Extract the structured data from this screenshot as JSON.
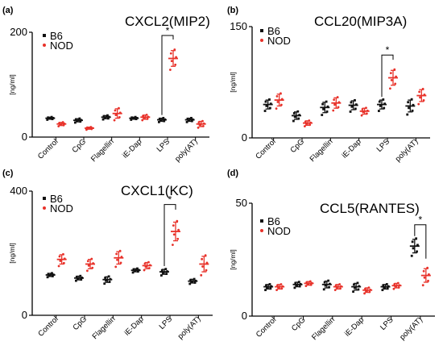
{
  "colors": {
    "b6": "#111111",
    "nod": "#e8322a"
  },
  "chart_data": [
    {
      "type": "scatter",
      "panel": "(a)",
      "title": "CXCL2(MIP2)",
      "ylabel": "[ng/ml]",
      "ylim": [
        0,
        200
      ],
      "yticks": [
        "0",
        "200"
      ],
      "categories": [
        "Control",
        "CpG",
        "Flagellin",
        "iE-Dap",
        "LPS",
        "poly(AT)"
      ],
      "series": [
        {
          "name": "B6",
          "means": [
            36,
            32,
            38,
            36,
            33,
            33
          ],
          "sems": [
            2,
            3,
            3,
            2,
            3,
            3
          ]
        },
        {
          "name": "NOD",
          "means": [
            25,
            17,
            45,
            38,
            150,
            25
          ],
          "sems": [
            3,
            2,
            9,
            4,
            15,
            5
          ]
        }
      ],
      "significance": [
        {
          "category": "LPS",
          "label": "*"
        }
      ],
      "legend": "top-left"
    },
    {
      "type": "scatter",
      "panel": "(b)",
      "title": "CCL20(MIP3A)",
      "ylabel": "[ng/ml]",
      "ylim": [
        0,
        150
      ],
      "yticks": [
        "0",
        "150"
      ],
      "categories": [
        "Control",
        "CpG",
        "Flagellin",
        "iE-Dap",
        "LPS",
        "poly(AT)"
      ],
      "series": [
        {
          "name": "B6",
          "means": [
            45,
            30,
            41,
            44,
            45,
            43
          ],
          "sems": [
            6,
            5,
            7,
            6,
            6,
            8
          ]
        },
        {
          "name": "NOD",
          "means": [
            51,
            20,
            47,
            36,
            81,
            57
          ],
          "sems": [
            8,
            3,
            7,
            4,
            10,
            8
          ]
        }
      ],
      "significance": [
        {
          "category": "LPS",
          "label": "*"
        }
      ],
      "legend": "top-left"
    },
    {
      "type": "scatter",
      "panel": "(c)",
      "title": "CXCL1(KC)",
      "ylabel": "[ng/ml]",
      "ylim": [
        0,
        400
      ],
      "yticks": [
        "0",
        "400"
      ],
      "categories": [
        "Control",
        "CpG",
        "Flagellin",
        "iE-Dap",
        "LPS",
        "poly(AT)"
      ],
      "series": [
        {
          "name": "B6",
          "means": [
            130,
            120,
            115,
            145,
            140,
            110
          ],
          "sems": [
            5,
            6,
            9,
            5,
            8,
            6
          ]
        },
        {
          "name": "NOD",
          "means": [
            180,
            165,
            185,
            160,
            270,
            165
          ],
          "sems": [
            15,
            15,
            20,
            10,
            30,
            25
          ]
        }
      ],
      "significance": [
        {
          "category": "LPS",
          "label": "*"
        }
      ],
      "legend": "top-left"
    },
    {
      "type": "scatter",
      "panel": "(d)",
      "title": "CCL5(RANTES)",
      "ylabel": "[ng/ml]",
      "ylim": [
        0,
        50
      ],
      "yticks": [
        "0",
        "50"
      ],
      "categories": [
        "Control",
        "CpG",
        "Flagellin",
        "iE-Dap",
        "LPS",
        "poly(AT)"
      ],
      "series": [
        {
          "name": "B6",
          "means": [
            13,
            14,
            14,
            13,
            13,
            31
          ],
          "sems": [
            1,
            1,
            1.5,
            1.5,
            1,
            3
          ]
        },
        {
          "name": "NOD",
          "means": [
            13,
            14.5,
            13,
            11.5,
            13.5,
            18
          ],
          "sems": [
            1,
            0.8,
            1,
            1,
            1,
            3
          ]
        }
      ],
      "significance": [
        {
          "category": "poly(AT)",
          "label": "*"
        }
      ],
      "legend": "top-left"
    }
  ]
}
